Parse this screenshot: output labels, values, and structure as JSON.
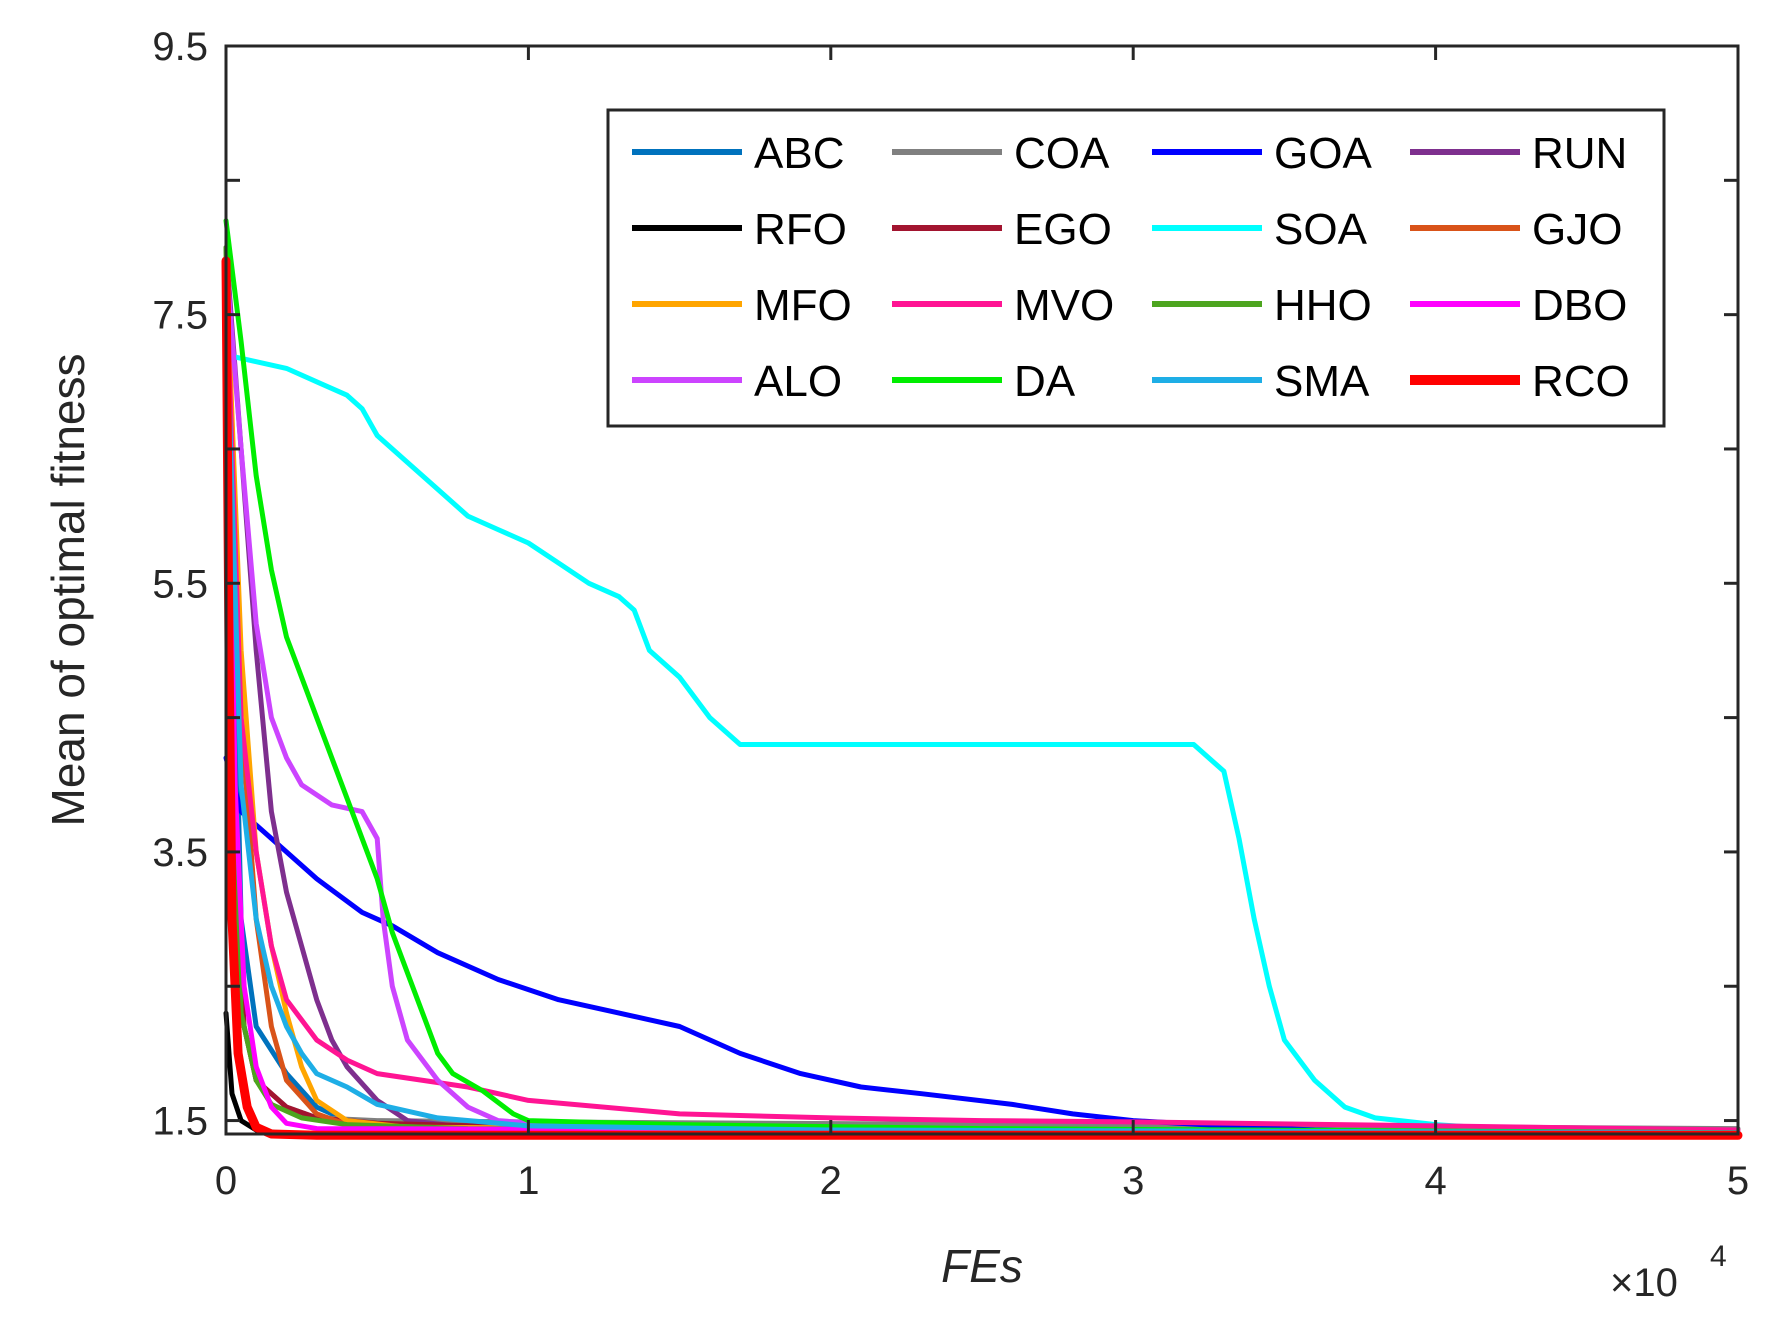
{
  "chart_data": {
    "type": "line",
    "title": "",
    "xlabel": "FEs",
    "ylabel": "Mean of optimal fitness",
    "x_multiplier_label": "×10",
    "x_multiplier_exponent": "4",
    "xlim": [
      0,
      5
    ],
    "ylim": [
      1.4,
      9.5
    ],
    "xticks": [
      0,
      1,
      2,
      3,
      4,
      5
    ],
    "xtick_labels": [
      "0",
      "1",
      "2",
      "3",
      "4",
      "5"
    ],
    "yticks": [
      1.5,
      3.5,
      5.5,
      7.5,
      9.5
    ],
    "ytick_labels": [
      "1.5",
      "3.5",
      "5.5",
      "7.5",
      "9.5"
    ],
    "yminor_ticks": [
      2.5,
      4.5,
      6.5,
      8.5
    ],
    "legend_position": "top-right",
    "series": [
      {
        "name": "ABC",
        "color": "#0072BD",
        "points": [
          [
            0,
            7.8
          ],
          [
            0.05,
            3.0
          ],
          [
            0.1,
            2.2
          ],
          [
            0.2,
            1.85
          ],
          [
            0.3,
            1.6
          ],
          [
            0.4,
            1.5
          ],
          [
            0.6,
            1.45
          ],
          [
            1,
            1.43
          ],
          [
            5,
            1.41
          ]
        ]
      },
      {
        "name": "COA",
        "color": "#808080",
        "points": [
          [
            0,
            7.9
          ],
          [
            0.02,
            4.0
          ],
          [
            0.05,
            2.3
          ],
          [
            0.1,
            1.8
          ],
          [
            0.2,
            1.6
          ],
          [
            0.3,
            1.52
          ],
          [
            0.5,
            1.5
          ],
          [
            1,
            1.49
          ],
          [
            5,
            1.44
          ]
        ]
      },
      {
        "name": "GOA",
        "color": "#0000FF",
        "points": [
          [
            0,
            4.2
          ],
          [
            0.05,
            3.8
          ],
          [
            0.15,
            3.6
          ],
          [
            0.3,
            3.3
          ],
          [
            0.45,
            3.05
          ],
          [
            0.55,
            2.95
          ],
          [
            0.7,
            2.75
          ],
          [
            0.9,
            2.55
          ],
          [
            1.1,
            2.4
          ],
          [
            1.3,
            2.3
          ],
          [
            1.5,
            2.2
          ],
          [
            1.7,
            2.0
          ],
          [
            1.9,
            1.85
          ],
          [
            2.1,
            1.75
          ],
          [
            2.3,
            1.7
          ],
          [
            2.6,
            1.62
          ],
          [
            2.8,
            1.55
          ],
          [
            3.0,
            1.5
          ],
          [
            3.3,
            1.46
          ],
          [
            3.6,
            1.43
          ],
          [
            4.0,
            1.41
          ],
          [
            5,
            1.4
          ]
        ]
      },
      {
        "name": "RUN",
        "color": "#7E2F8E",
        "points": [
          [
            0,
            8.0
          ],
          [
            0.05,
            6.5
          ],
          [
            0.1,
            5.0
          ],
          [
            0.15,
            3.8
          ],
          [
            0.2,
            3.2
          ],
          [
            0.25,
            2.8
          ],
          [
            0.3,
            2.4
          ],
          [
            0.35,
            2.1
          ],
          [
            0.4,
            1.9
          ],
          [
            0.5,
            1.65
          ],
          [
            0.6,
            1.5
          ],
          [
            0.8,
            1.45
          ],
          [
            1.2,
            1.42
          ],
          [
            5,
            1.4
          ]
        ]
      },
      {
        "name": "RFO",
        "color": "#000000",
        "points": [
          [
            0,
            2.3
          ],
          [
            0.02,
            1.7
          ],
          [
            0.05,
            1.5
          ],
          [
            0.1,
            1.43
          ],
          [
            0.2,
            1.4
          ],
          [
            5,
            1.38
          ]
        ]
      },
      {
        "name": "EGO",
        "color": "#A2142F",
        "points": [
          [
            0,
            7.7
          ],
          [
            0.03,
            3.5
          ],
          [
            0.06,
            2.2
          ],
          [
            0.1,
            1.8
          ],
          [
            0.2,
            1.6
          ],
          [
            0.3,
            1.52
          ],
          [
            0.5,
            1.48
          ],
          [
            1,
            1.45
          ],
          [
            5,
            1.4
          ]
        ]
      },
      {
        "name": "SOA",
        "color": "#00FFFF",
        "points": [
          [
            0,
            7.2
          ],
          [
            0.1,
            7.15
          ],
          [
            0.2,
            7.1
          ],
          [
            0.3,
            7.0
          ],
          [
            0.4,
            6.9
          ],
          [
            0.45,
            6.8
          ],
          [
            0.5,
            6.6
          ],
          [
            0.6,
            6.4
          ],
          [
            0.7,
            6.2
          ],
          [
            0.8,
            6.0
          ],
          [
            0.9,
            5.9
          ],
          [
            1.0,
            5.8
          ],
          [
            1.1,
            5.65
          ],
          [
            1.2,
            5.5
          ],
          [
            1.3,
            5.4
          ],
          [
            1.35,
            5.3
          ],
          [
            1.4,
            5.0
          ],
          [
            1.5,
            4.8
          ],
          [
            1.6,
            4.5
          ],
          [
            1.7,
            4.3
          ],
          [
            2.0,
            4.3
          ],
          [
            3.2,
            4.3
          ],
          [
            3.3,
            4.1
          ],
          [
            3.35,
            3.6
          ],
          [
            3.4,
            3.0
          ],
          [
            3.45,
            2.5
          ],
          [
            3.5,
            2.1
          ],
          [
            3.6,
            1.8
          ],
          [
            3.7,
            1.6
          ],
          [
            3.8,
            1.52
          ],
          [
            4.0,
            1.47
          ],
          [
            4.2,
            1.44
          ],
          [
            4.5,
            1.42
          ],
          [
            5,
            1.41
          ]
        ]
      },
      {
        "name": "GJO",
        "color": "#D95319",
        "points": [
          [
            0,
            7.9
          ],
          [
            0.05,
            4.5
          ],
          [
            0.1,
            3.0
          ],
          [
            0.15,
            2.2
          ],
          [
            0.2,
            1.8
          ],
          [
            0.3,
            1.55
          ],
          [
            0.4,
            1.47
          ],
          [
            0.6,
            1.44
          ],
          [
            5,
            1.41
          ]
        ]
      },
      {
        "name": "MFO",
        "color": "#FFA500",
        "points": [
          [
            0,
            7.9
          ],
          [
            0.05,
            5.0
          ],
          [
            0.1,
            3.5
          ],
          [
            0.15,
            2.8
          ],
          [
            0.2,
            2.3
          ],
          [
            0.25,
            1.9
          ],
          [
            0.3,
            1.65
          ],
          [
            0.4,
            1.5
          ],
          [
            0.6,
            1.45
          ],
          [
            5,
            1.41
          ]
        ]
      },
      {
        "name": "MVO",
        "color": "#FF1493",
        "points": [
          [
            0,
            7.8
          ],
          [
            0.05,
            4.5
          ],
          [
            0.1,
            3.5
          ],
          [
            0.15,
            2.8
          ],
          [
            0.2,
            2.4
          ],
          [
            0.3,
            2.1
          ],
          [
            0.4,
            1.95
          ],
          [
            0.5,
            1.85
          ],
          [
            0.8,
            1.75
          ],
          [
            1.0,
            1.65
          ],
          [
            1.5,
            1.55
          ],
          [
            2.0,
            1.52
          ],
          [
            2.5,
            1.5
          ],
          [
            3.0,
            1.49
          ],
          [
            4.0,
            1.46
          ],
          [
            5,
            1.43
          ]
        ]
      },
      {
        "name": "HHO",
        "color": "#4DA51F",
        "points": [
          [
            0,
            8.0
          ],
          [
            0.02,
            4.0
          ],
          [
            0.05,
            2.3
          ],
          [
            0.1,
            1.8
          ],
          [
            0.15,
            1.62
          ],
          [
            0.25,
            1.52
          ],
          [
            0.4,
            1.47
          ],
          [
            0.8,
            1.44
          ],
          [
            5,
            1.41
          ]
        ]
      },
      {
        "name": "DBO",
        "color": "#FF00FF",
        "points": [
          [
            0,
            7.8
          ],
          [
            0.03,
            4.0
          ],
          [
            0.06,
            2.5
          ],
          [
            0.1,
            1.9
          ],
          [
            0.15,
            1.6
          ],
          [
            0.2,
            1.48
          ],
          [
            0.3,
            1.44
          ],
          [
            5,
            1.41
          ]
        ]
      },
      {
        "name": "ALO",
        "color": "#CC44FF",
        "points": [
          [
            0,
            7.9
          ],
          [
            0.05,
            6.5
          ],
          [
            0.1,
            5.2
          ],
          [
            0.15,
            4.5
          ],
          [
            0.2,
            4.2
          ],
          [
            0.25,
            4.0
          ],
          [
            0.35,
            3.85
          ],
          [
            0.45,
            3.8
          ],
          [
            0.5,
            3.6
          ],
          [
            0.52,
            3.0
          ],
          [
            0.55,
            2.5
          ],
          [
            0.6,
            2.1
          ],
          [
            0.7,
            1.8
          ],
          [
            0.8,
            1.6
          ],
          [
            0.9,
            1.5
          ],
          [
            1.2,
            1.45
          ],
          [
            2.0,
            1.42
          ],
          [
            5,
            1.4
          ]
        ]
      },
      {
        "name": "DA",
        "color": "#00EE00",
        "points": [
          [
            0,
            8.2
          ],
          [
            0.05,
            7.3
          ],
          [
            0.1,
            6.3
          ],
          [
            0.15,
            5.6
          ],
          [
            0.2,
            5.1
          ],
          [
            0.25,
            4.8
          ],
          [
            0.3,
            4.5
          ],
          [
            0.35,
            4.2
          ],
          [
            0.4,
            3.9
          ],
          [
            0.45,
            3.6
          ],
          [
            0.5,
            3.3
          ],
          [
            0.55,
            2.9
          ],
          [
            0.6,
            2.6
          ],
          [
            0.65,
            2.3
          ],
          [
            0.7,
            2.0
          ],
          [
            0.75,
            1.85
          ],
          [
            0.85,
            1.72
          ],
          [
            0.95,
            1.55
          ],
          [
            1.0,
            1.5
          ],
          [
            1.5,
            1.47
          ],
          [
            2.5,
            1.44
          ],
          [
            5,
            1.41
          ]
        ]
      },
      {
        "name": "SMA",
        "color": "#1EAEE6",
        "points": [
          [
            0,
            7.6
          ],
          [
            0.05,
            4.0
          ],
          [
            0.1,
            3.0
          ],
          [
            0.15,
            2.5
          ],
          [
            0.2,
            2.2
          ],
          [
            0.25,
            2.0
          ],
          [
            0.3,
            1.85
          ],
          [
            0.4,
            1.75
          ],
          [
            0.5,
            1.62
          ],
          [
            0.7,
            1.52
          ],
          [
            1.0,
            1.46
          ],
          [
            2,
            1.43
          ],
          [
            5,
            1.41
          ]
        ]
      },
      {
        "name": "RCO",
        "color": "#FF0000",
        "points": [
          [
            0,
            7.9
          ],
          [
            0.01,
            5.0
          ],
          [
            0.02,
            3.0
          ],
          [
            0.04,
            2.0
          ],
          [
            0.07,
            1.6
          ],
          [
            0.1,
            1.45
          ],
          [
            0.15,
            1.4
          ],
          [
            0.3,
            1.39
          ],
          [
            5,
            1.39
          ]
        ]
      }
    ]
  }
}
